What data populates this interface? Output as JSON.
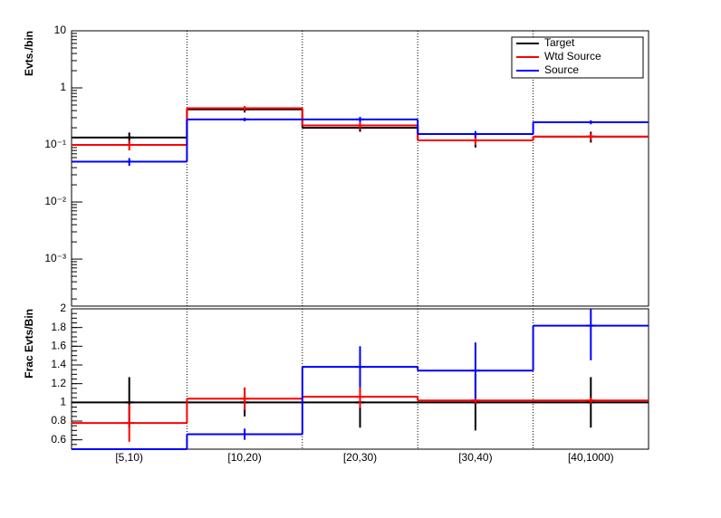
{
  "chart_data": [
    {
      "type": "step",
      "y_label": "Evts./bin",
      "log_y": true,
      "ylim": [
        0.00015,
        10
      ],
      "yticks": [
        {
          "value": 10,
          "label": "10"
        },
        {
          "value": 1,
          "label": "1"
        },
        {
          "value": 0.1,
          "label": "10⁻¹"
        },
        {
          "value": 0.01,
          "label": "10⁻²"
        },
        {
          "value": 0.001,
          "label": "10⁻³"
        }
      ],
      "grid_x": true,
      "legend": "upper right",
      "series": [
        {
          "name": "Target",
          "color": "#000000",
          "values": [
            0.135,
            0.42,
            0.2,
            0.12,
            0.14
          ],
          "errors": [
            0.03,
            0.05,
            0.03,
            0.03,
            0.03
          ]
        },
        {
          "name": "Wtd Source",
          "color": "#ff0000",
          "values": [
            0.1,
            0.44,
            0.22,
            0.12,
            0.14
          ],
          "errors": [
            0.02,
            0.04,
            0.03,
            0.02,
            0.02
          ]
        },
        {
          "name": "Source",
          "color": "#0000ff",
          "values": [
            0.051,
            0.28,
            0.28,
            0.155,
            0.25
          ],
          "errors": [
            0.008,
            0.02,
            0.03,
            0.02,
            0.02
          ]
        }
      ]
    },
    {
      "type": "step",
      "y_label": "Frac Evts/Bin",
      "log_y": false,
      "categories": [
        "[5,10)",
        "[10,20)",
        "[20,30)",
        "[30,40)",
        "[40,1000)"
      ],
      "ylim": [
        0.5,
        2
      ],
      "yticks": [
        0.6,
        0.8,
        1,
        1.2,
        1.4,
        1.6,
        1.8,
        2
      ],
      "grid_x": true,
      "series": [
        {
          "color": "#000000",
          "values": [
            1,
            1,
            1,
            1,
            1
          ],
          "errors": [
            0.27,
            0.15,
            0.27,
            0.3,
            0.27
          ]
        },
        {
          "color": "#ff0000",
          "values": [
            0.78,
            1.04,
            1.06,
            1.02,
            1.02
          ],
          "errors": [
            0.2,
            0.12,
            0.12,
            0.03,
            0.03
          ]
        },
        {
          "color": "#0000ff",
          "values": [
            0.5,
            0.66,
            1.38,
            1.34,
            1.82
          ],
          "errors": [
            0,
            0.06,
            0.22,
            0.3,
            0.37
          ]
        }
      ]
    }
  ]
}
